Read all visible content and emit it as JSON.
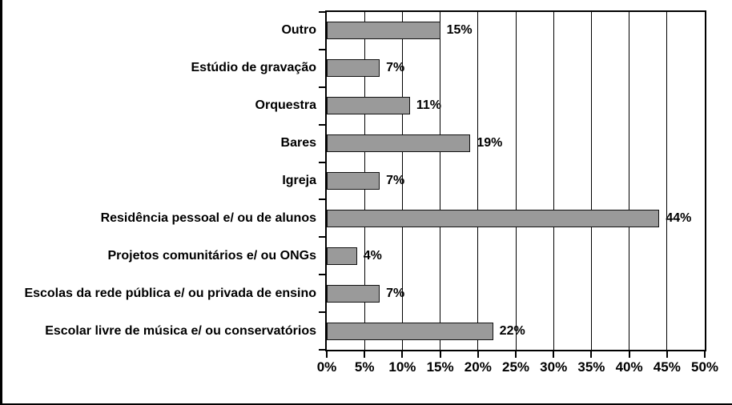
{
  "chart_data": {
    "type": "bar",
    "orientation": "horizontal",
    "title": "",
    "xlabel": "",
    "ylabel": "",
    "categories": [
      "Outro",
      "Estúdio de gravação",
      "Orquestra",
      "Bares",
      "Igreja",
      "Residência pessoal e/ ou de alunos",
      "Projetos comunitários e/ ou ONGs",
      "Escolas da rede pública e/ ou privada de ensino",
      "Escolar livre de música e/ ou conservatórios"
    ],
    "values": [
      15,
      7,
      11,
      19,
      7,
      44,
      4,
      7,
      22
    ],
    "value_labels": [
      "15%",
      "7%",
      "11%",
      "19%",
      "7%",
      "44%",
      "4%",
      "7%",
      "22%"
    ],
    "x_tick_labels": [
      "0%",
      "5%",
      "10%",
      "15%",
      "20%",
      "25%",
      "30%",
      "35%",
      "40%",
      "45%",
      "50%"
    ],
    "x_tick_values": [
      0,
      5,
      10,
      15,
      20,
      25,
      30,
      35,
      40,
      45,
      50
    ],
    "xlim": [
      0,
      50
    ],
    "grid": "vertical-gridlines-on",
    "legend": "none",
    "bar_color": "#9a9a9a",
    "bar_border_color": "#111111",
    "axis_color": "#000000",
    "background_color": "#ffffff"
  }
}
